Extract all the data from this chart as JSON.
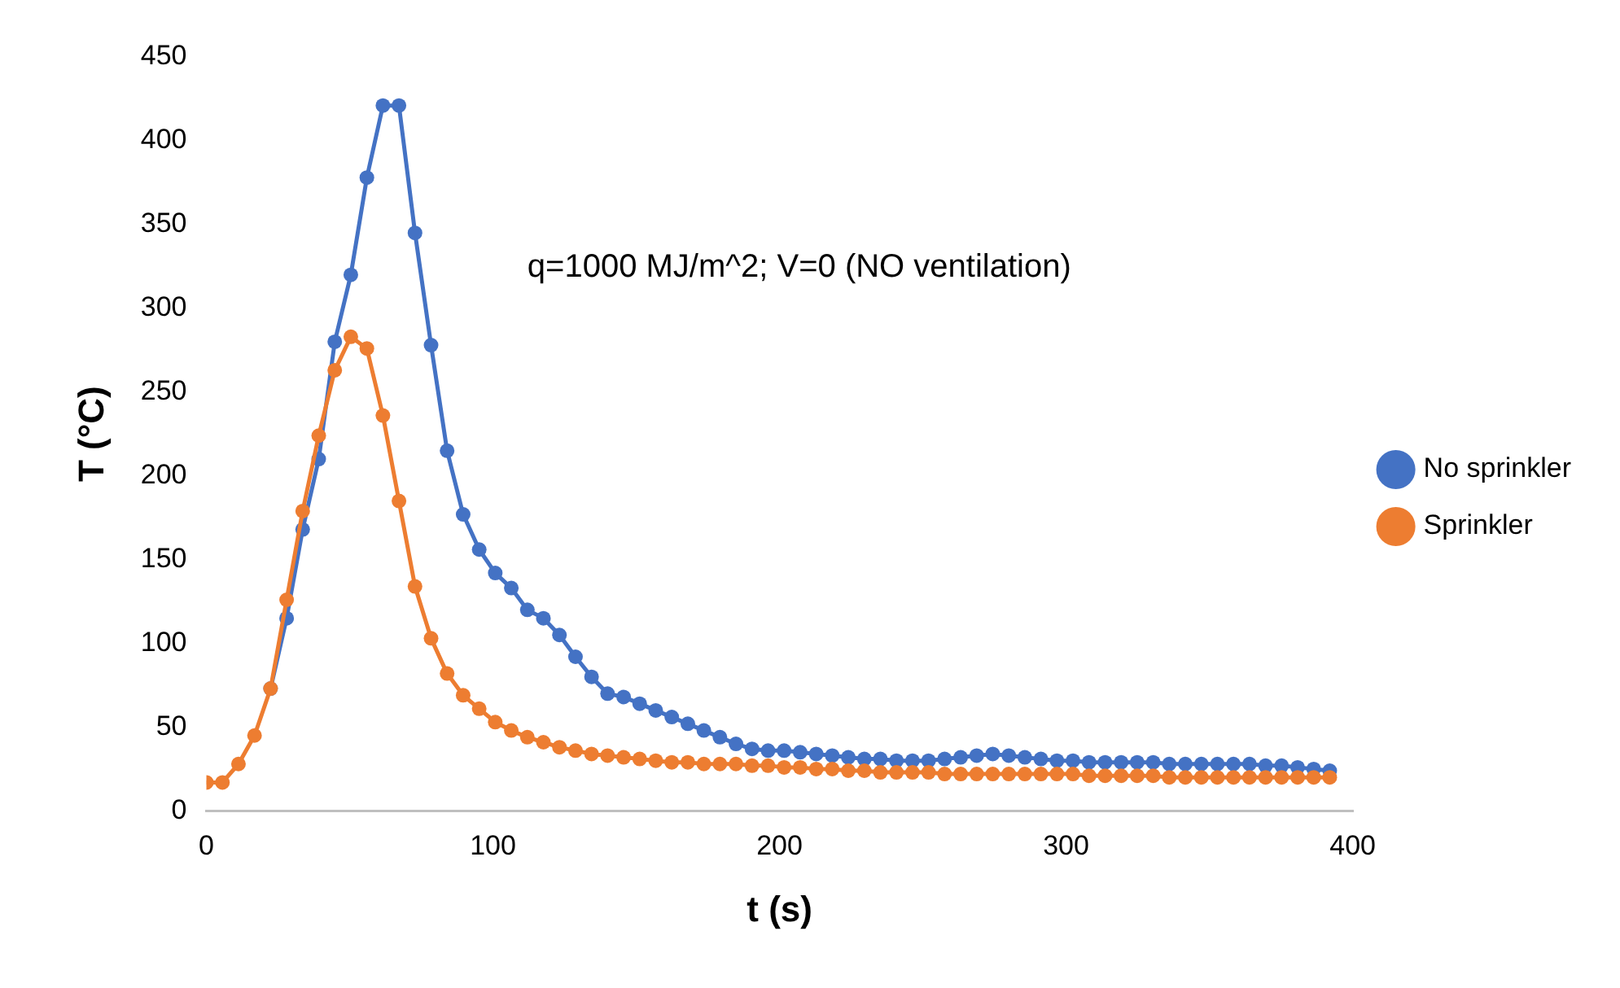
{
  "chart_data": {
    "type": "line",
    "xlabel": "t (s)",
    "ylabel": "T (°C)",
    "annotations": [
      "q=1000 MJ/m^2; V=0 (NO ventilation)"
    ],
    "x": [
      0,
      5.6,
      11.2,
      16.8,
      22.4,
      28,
      33.6,
      39.2,
      44.8,
      50.4,
      56,
      61.6,
      67.2,
      72.8,
      78.4,
      84,
      89.6,
      95.2,
      100.8,
      106.4,
      112,
      117.6,
      123.2,
      128.8,
      134.4,
      140,
      145.6,
      151.2,
      156.8,
      162.4,
      168,
      173.6,
      179.2,
      184.8,
      190.4,
      196,
      201.6,
      207.2,
      212.8,
      218.4,
      224,
      229.6,
      235.2,
      240.8,
      246.4,
      252,
      257.6,
      263.2,
      268.8,
      274.4,
      280,
      285.6,
      291.2,
      296.8,
      302.4,
      308,
      313.6,
      319.2,
      324.8,
      330.4,
      336,
      341.6,
      347.2,
      352.8,
      358.4,
      364,
      369.6,
      375.2,
      380.8,
      386.4,
      392
    ],
    "series": [
      {
        "name": "No sprinkler",
        "color": "#4472c4",
        "values": [
          null,
          null,
          null,
          null,
          73,
          115,
          168,
          210,
          280,
          320,
          378,
          421,
          421,
          345,
          278,
          215,
          177,
          156,
          142,
          133,
          120,
          115,
          105,
          92,
          80,
          70,
          68,
          64,
          60,
          56,
          52,
          48,
          44,
          40,
          37,
          36,
          36,
          35,
          34,
          33,
          32,
          31,
          31,
          30,
          30,
          30,
          31,
          32,
          33,
          34,
          33,
          32,
          31,
          30,
          30,
          29,
          29,
          29,
          29,
          29,
          28,
          28,
          28,
          28,
          28,
          28,
          27,
          27,
          26,
          25,
          24
        ]
      },
      {
        "name": "Sprinkler",
        "color": "#ed7d31",
        "values": [
          17,
          17,
          28,
          45,
          73,
          126,
          179,
          224,
          263,
          283,
          276,
          236,
          185,
          134,
          103,
          82,
          69,
          61,
          53,
          48,
          44,
          41,
          38,
          36,
          34,
          33,
          32,
          31,
          30,
          29,
          29,
          28,
          28,
          28,
          27,
          27,
          26,
          26,
          25,
          25,
          24,
          24,
          23,
          23,
          23,
          23,
          22,
          22,
          22,
          22,
          22,
          22,
          22,
          22,
          22,
          21,
          21,
          21,
          21,
          21,
          20,
          20,
          20,
          20,
          20,
          20,
          20,
          20,
          20,
          20,
          20
        ]
      }
    ],
    "xlim": [
      0,
      400
    ],
    "xticks": [
      0,
      100,
      200,
      300,
      400
    ],
    "ylim": [
      0,
      450
    ],
    "yticks": [
      0,
      50,
      100,
      150,
      200,
      250,
      300,
      350,
      400,
      450
    ],
    "grid": false,
    "legend": "right",
    "marker": "circle",
    "line_style": "solid"
  }
}
